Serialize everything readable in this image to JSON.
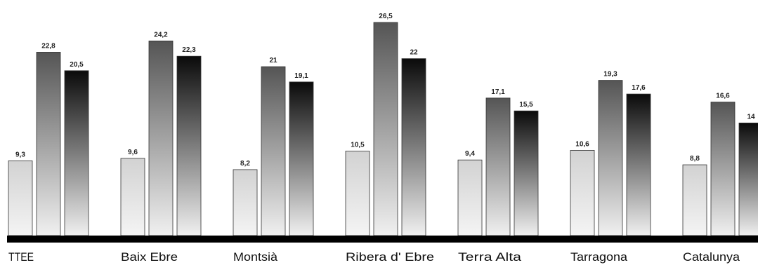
{
  "chart_data": {
    "type": "bar",
    "categories": [
      "TTEE",
      "Baix Ebre",
      "Montsià",
      "Ribera d' Ebre",
      "Terra Alta",
      "Tarragona",
      "Catalunya"
    ],
    "series": [
      {
        "values": [
          9.3,
          9.6,
          8.2,
          10.5,
          9.4,
          10.6,
          8.8
        ],
        "labels": [
          "9,3",
          "9,6",
          "8,2",
          "10,5",
          "9,4",
          "10,6",
          "8,8"
        ]
      },
      {
        "values": [
          22.8,
          24.2,
          21,
          26.5,
          17.1,
          19.3,
          16.6
        ],
        "labels": [
          "22,8",
          "24,2",
          "21",
          "26,5",
          "17,1",
          "19,3",
          "16,6"
        ]
      },
      {
        "values": [
          20.5,
          22.3,
          19.1,
          22,
          15.5,
          17.6,
          14
        ],
        "labels": [
          "20,5",
          "22,3",
          "19,1",
          "22",
          "15,5",
          "17,6",
          "14"
        ]
      }
    ],
    "title": "",
    "xlabel": "",
    "ylabel": "",
    "ylim": [
      0,
      27
    ],
    "grid": false,
    "legend": "none",
    "colors": {
      "series1_top": "#d2d2d2",
      "series1_bottom": "#f4f4f4",
      "series2_top": "#555555",
      "series2_bottom": "#f0f0f0",
      "series3_top": "#0a0a0a",
      "series3_bottom": "#f0f0f0",
      "baseline": "#000000"
    }
  }
}
